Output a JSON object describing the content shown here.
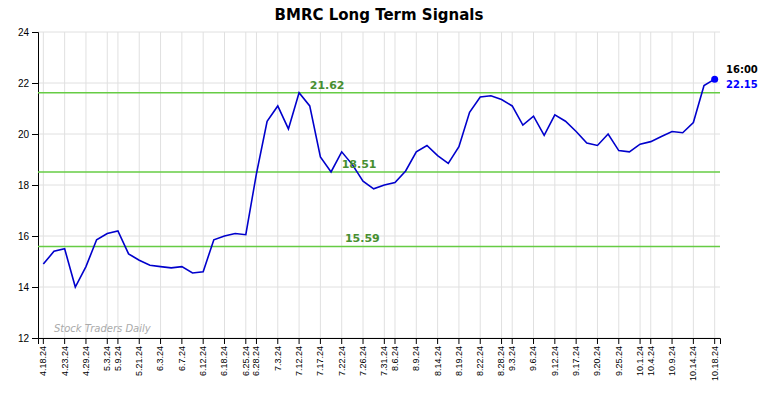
{
  "chart_data": {
    "type": "line",
    "title": "BMRC Long Term Signals",
    "categories": [
      "4.18.24",
      null,
      "4.23.24",
      null,
      "4.29.24",
      null,
      "5.3.24",
      "5.9.24",
      null,
      "5.21.24",
      null,
      "6.3.24",
      null,
      "6.7.24",
      null,
      "6.12.24",
      null,
      "6.18.24",
      null,
      "6.25.24",
      "6.28.24",
      null,
      "7.3.24",
      null,
      "7.12.24",
      null,
      "7.17.24",
      null,
      "7.22.24",
      null,
      "7.26.24",
      null,
      "7.31.24",
      "8.6.24",
      null,
      "8.9.24",
      null,
      "8.14.24",
      null,
      "8.19.24",
      null,
      "8.22.24",
      null,
      "8.28.24",
      "9.3.24",
      null,
      "9.6.24",
      null,
      "9.12.24",
      null,
      "9.17.24",
      null,
      "9.20.24",
      null,
      "9.25.24",
      null,
      "10.1.24",
      "10.4.24",
      null,
      "10.9.24",
      null,
      "10.14.24",
      null,
      "10.18.24"
    ],
    "series": [
      {
        "color": "#0000CC",
        "values": [
          14.9,
          15.4,
          15.5,
          14.0,
          14.8,
          15.85,
          16.1,
          16.2,
          15.3,
          15.05,
          14.85,
          14.8,
          14.75,
          14.8,
          14.55,
          14.6,
          15.85,
          16.0,
          16.1,
          16.05,
          18.45,
          20.5,
          21.1,
          20.2,
          21.62,
          21.1,
          19.1,
          18.51,
          19.3,
          18.8,
          18.15,
          17.85,
          18.0,
          18.1,
          18.55,
          19.3,
          19.55,
          19.15,
          18.85,
          19.5,
          20.85,
          21.45,
          21.5,
          21.35,
          21.1,
          20.35,
          20.7,
          19.95,
          20.75,
          20.5,
          20.1,
          19.65,
          19.55,
          20.0,
          19.35,
          19.3,
          19.6,
          19.7,
          19.9,
          20.1,
          20.05,
          20.45,
          21.9,
          22.15
        ],
        "end_point": {
          "label": "22.15",
          "time": "16:00",
          "color": "#0000FF"
        }
      }
    ],
    "reference_lines": [
      {
        "value": 15.59,
        "label": "15.59",
        "color": "#66CC44"
      },
      {
        "value": 18.51,
        "label": "18.51",
        "color": "#66CC44"
      },
      {
        "value": 21.62,
        "label": "21.62",
        "color": "#66CC44"
      }
    ],
    "watermark": {
      "text": "Stock Traders Daily",
      "color": "#AAAAAA"
    },
    "ylim": [
      12,
      24
    ],
    "yticks": [
      12,
      14,
      16,
      18,
      20,
      22,
      24
    ],
    "grid": true
  }
}
